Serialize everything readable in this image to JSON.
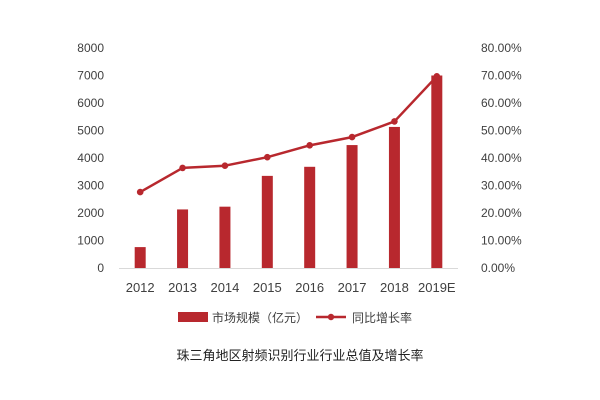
{
  "chart_data": {
    "type": "bar",
    "title": "珠三角地区射频识别行业行业总值及增长率",
    "categories": [
      "2012",
      "2013",
      "2014",
      "2015",
      "2016",
      "2017",
      "2018",
      "2019E"
    ],
    "series": [
      {
        "name": "市场规模（亿元）",
        "type": "bar",
        "axis": "left",
        "values": [
          760,
          2130,
          2230,
          3350,
          3680,
          4470,
          5130,
          7000
        ]
      },
      {
        "name": "同比增长率",
        "type": "line",
        "axis": "right",
        "values": [
          27.6,
          36.4,
          37.2,
          40.3,
          44.6,
          47.6,
          53.3,
          69.7
        ]
      }
    ],
    "y_left": {
      "lim": [
        0,
        8000
      ],
      "ticks": [
        "0",
        "1000",
        "2000",
        "3000",
        "4000",
        "5000",
        "6000",
        "7000",
        "8000"
      ]
    },
    "y_right": {
      "lim": [
        0,
        80
      ],
      "ticks": [
        "0.00%",
        "10.00%",
        "20.00%",
        "30.00%",
        "40.00%",
        "50.00%",
        "60.00%",
        "70.00%",
        "80.00%"
      ]
    },
    "grid": false,
    "legend_position": "bottom",
    "colors": {
      "bar": "#b8282e",
      "line": "#b8282e",
      "axis": "#d9d9d9",
      "text": "#404040"
    }
  }
}
